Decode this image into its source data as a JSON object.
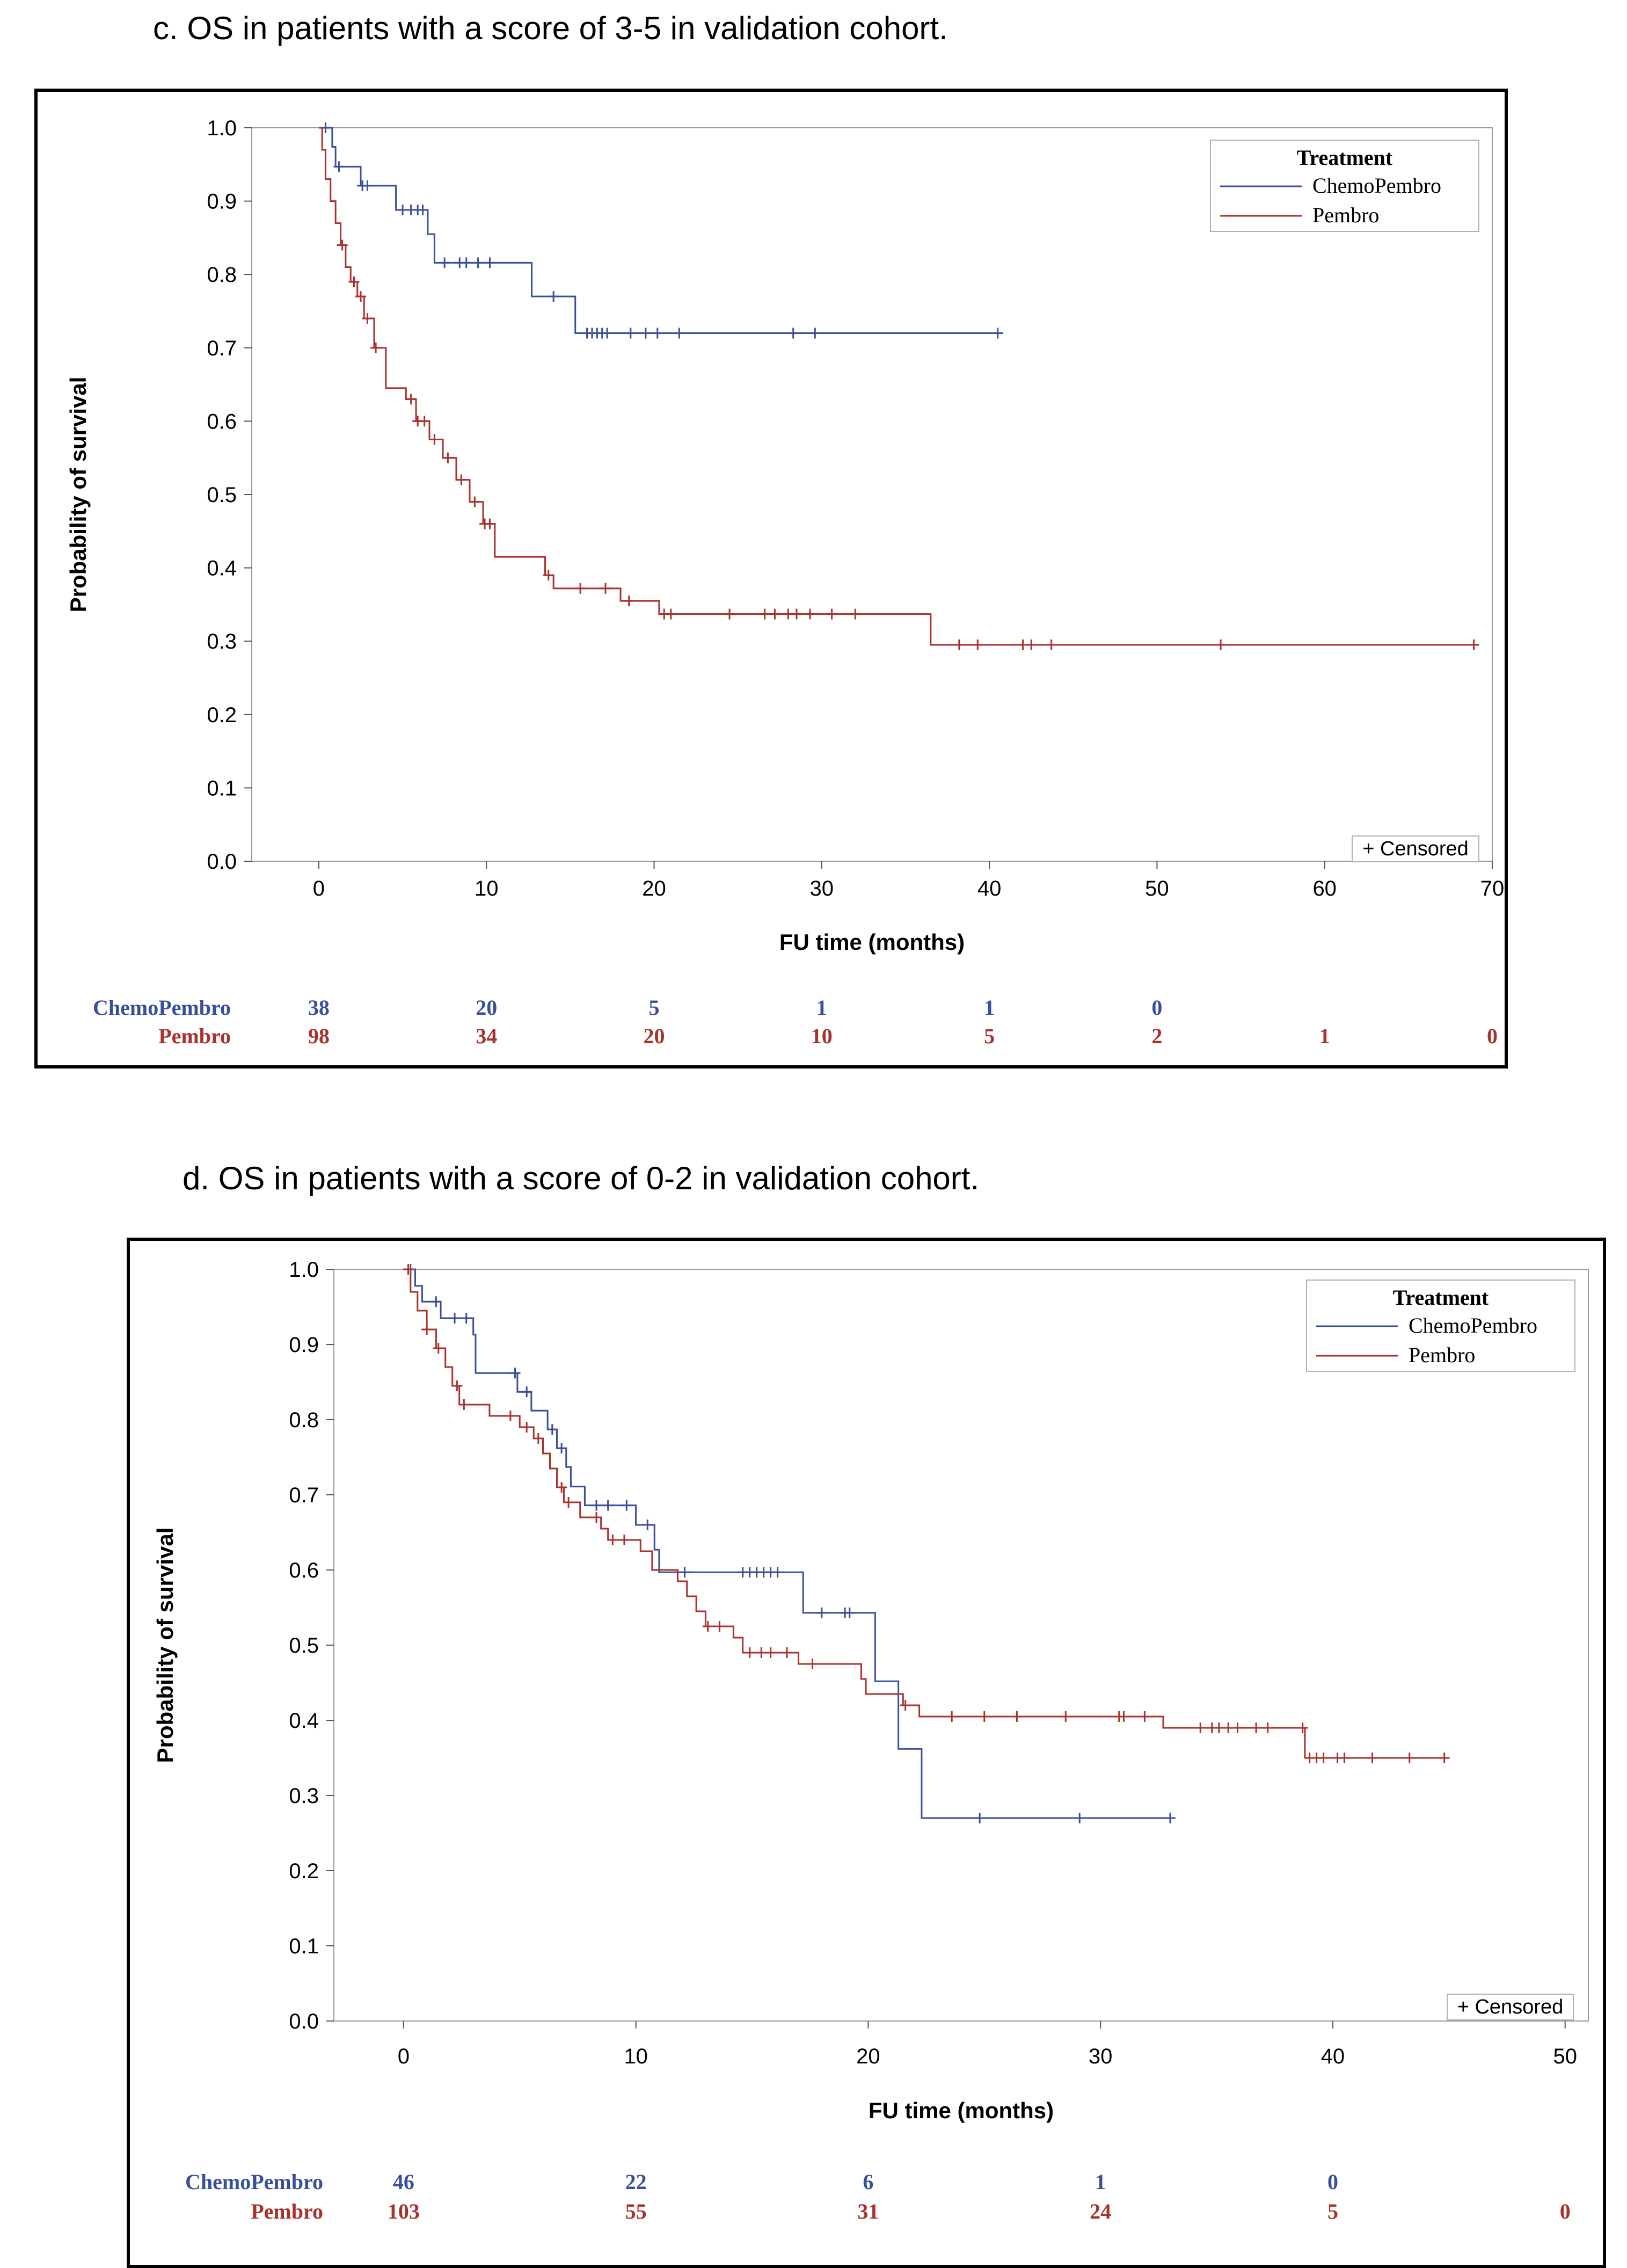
{
  "panels": {
    "c": {
      "title": "c. OS in patients with a score of 3-5 in validation cohort."
    },
    "d": {
      "title": "d. OS in patients with a score of 0-2 in validation cohort."
    }
  },
  "colors": {
    "ChemoPembro": "#3a4f9a",
    "Pembro": "#a8322c"
  },
  "chart_data": [
    {
      "type": "line",
      "subtype": "kaplan-meier",
      "id": "c",
      "title": "c. OS in patients with a score of 3-5 in validation cohort.",
      "xlabel": "FU time (months)",
      "ylabel": "Probability of survival",
      "xlim": [
        -4,
        70
      ],
      "ylim": [
        0,
        1
      ],
      "xticks": [
        0,
        10,
        20,
        30,
        40,
        50,
        60,
        70
      ],
      "yticks": [
        "0.0",
        "0.1",
        "0.2",
        "0.3",
        "0.4",
        "0.5",
        "0.6",
        "0.7",
        "0.8",
        "0.9",
        "1.0"
      ],
      "legend": {
        "title": "Treatment",
        "position": "top-right"
      },
      "censor_label": "+ Censored",
      "series": [
        {
          "name": "ChemoPembro",
          "steps": [
            [
              0,
              1.0
            ],
            [
              0.8,
              0.974
            ],
            [
              1.0,
              0.947
            ],
            [
              2.5,
              0.921
            ],
            [
              4.6,
              0.888
            ],
            [
              6.5,
              0.855
            ],
            [
              6.9,
              0.816
            ],
            [
              12.7,
              0.77
            ],
            [
              15.3,
              0.72
            ],
            [
              40.5,
              0.72
            ]
          ],
          "censored": [
            [
              0.4,
              1.0
            ],
            [
              1.2,
              0.947
            ],
            [
              2.6,
              0.921
            ],
            [
              2.9,
              0.921
            ],
            [
              5.0,
              0.888
            ],
            [
              5.5,
              0.888
            ],
            [
              5.9,
              0.888
            ],
            [
              6.2,
              0.888
            ],
            [
              7.5,
              0.816
            ],
            [
              8.4,
              0.816
            ],
            [
              8.8,
              0.816
            ],
            [
              9.5,
              0.816
            ],
            [
              10.2,
              0.816
            ],
            [
              14.0,
              0.77
            ],
            [
              16.0,
              0.72
            ],
            [
              16.3,
              0.72
            ],
            [
              16.6,
              0.72
            ],
            [
              16.9,
              0.72
            ],
            [
              17.2,
              0.72
            ],
            [
              18.6,
              0.72
            ],
            [
              19.5,
              0.72
            ],
            [
              20.2,
              0.72
            ],
            [
              21.5,
              0.72
            ],
            [
              28.3,
              0.72
            ],
            [
              29.6,
              0.72
            ],
            [
              40.5,
              0.72
            ]
          ]
        },
        {
          "name": "Pembro",
          "steps": [
            [
              0,
              1.0
            ],
            [
              0.2,
              0.97
            ],
            [
              0.4,
              0.93
            ],
            [
              0.7,
              0.9
            ],
            [
              1.0,
              0.87
            ],
            [
              1.3,
              0.84
            ],
            [
              1.6,
              0.81
            ],
            [
              1.9,
              0.79
            ],
            [
              2.3,
              0.77
            ],
            [
              2.7,
              0.74
            ],
            [
              3.3,
              0.7
            ],
            [
              4.0,
              0.645
            ],
            [
              5.2,
              0.63
            ],
            [
              5.8,
              0.6
            ],
            [
              6.6,
              0.575
            ],
            [
              7.4,
              0.55
            ],
            [
              8.2,
              0.52
            ],
            [
              9.0,
              0.49
            ],
            [
              9.8,
              0.46
            ],
            [
              10.5,
              0.415
            ],
            [
              13.5,
              0.39
            ],
            [
              14.0,
              0.372
            ],
            [
              18.0,
              0.355
            ],
            [
              20.3,
              0.337
            ],
            [
              36.5,
              0.295
            ],
            [
              68.9,
              0.295
            ]
          ],
          "censored": [
            [
              1.4,
              0.84
            ],
            [
              2.1,
              0.79
            ],
            [
              2.5,
              0.77
            ],
            [
              2.9,
              0.74
            ],
            [
              3.4,
              0.7
            ],
            [
              5.5,
              0.63
            ],
            [
              5.9,
              0.6
            ],
            [
              6.3,
              0.6
            ],
            [
              6.9,
              0.575
            ],
            [
              7.7,
              0.55
            ],
            [
              8.5,
              0.52
            ],
            [
              9.3,
              0.49
            ],
            [
              9.9,
              0.46
            ],
            [
              10.2,
              0.46
            ],
            [
              13.7,
              0.39
            ],
            [
              15.6,
              0.372
            ],
            [
              17.1,
              0.372
            ],
            [
              18.5,
              0.355
            ],
            [
              20.6,
              0.337
            ],
            [
              21.0,
              0.337
            ],
            [
              24.5,
              0.337
            ],
            [
              26.6,
              0.337
            ],
            [
              27.2,
              0.337
            ],
            [
              28.0,
              0.337
            ],
            [
              28.5,
              0.337
            ],
            [
              29.3,
              0.337
            ],
            [
              30.6,
              0.337
            ],
            [
              32.0,
              0.337
            ],
            [
              38.2,
              0.295
            ],
            [
              39.3,
              0.295
            ],
            [
              42.0,
              0.295
            ],
            [
              42.5,
              0.295
            ],
            [
              43.7,
              0.295
            ],
            [
              53.8,
              0.295
            ],
            [
              68.9,
              0.295
            ]
          ]
        }
      ],
      "risk_table": {
        "times": [
          0,
          10,
          20,
          30,
          40,
          50,
          60,
          70
        ],
        "rows": [
          {
            "name": "ChemoPembro",
            "values": [
              "38",
              "20",
              "5",
              "1",
              "1",
              "0",
              "",
              ""
            ]
          },
          {
            "name": "Pembro",
            "values": [
              "98",
              "34",
              "20",
              "10",
              "5",
              "2",
              "1",
              "0"
            ]
          }
        ]
      }
    },
    {
      "type": "line",
      "subtype": "kaplan-meier",
      "id": "d",
      "title": "d. OS in patients with a score of 0-2 in validation cohort.",
      "xlabel": "FU time (months)",
      "ylabel": "Probability of survival",
      "xlim": [
        -3,
        51
      ],
      "ylim": [
        0,
        1
      ],
      "xticks": [
        0,
        10,
        20,
        30,
        40,
        50
      ],
      "yticks": [
        "0.0",
        "0.1",
        "0.2",
        "0.3",
        "0.4",
        "0.5",
        "0.6",
        "0.7",
        "0.8",
        "0.9",
        "1.0"
      ],
      "legend": {
        "title": "Treatment",
        "position": "top-right"
      },
      "censor_label": "+ Censored",
      "series": [
        {
          "name": "ChemoPembro",
          "steps": [
            [
              0,
              1.0
            ],
            [
              0.5,
              0.978
            ],
            [
              0.8,
              0.957
            ],
            [
              1.6,
              0.935
            ],
            [
              3.0,
              0.913
            ],
            [
              3.1,
              0.862
            ],
            [
              4.9,
              0.837
            ],
            [
              5.5,
              0.812
            ],
            [
              6.2,
              0.787
            ],
            [
              6.6,
              0.762
            ],
            [
              7.0,
              0.737
            ],
            [
              7.2,
              0.711
            ],
            [
              7.8,
              0.686
            ],
            [
              10.0,
              0.66
            ],
            [
              10.8,
              0.627
            ],
            [
              11.0,
              0.597
            ],
            [
              17.2,
              0.543
            ],
            [
              20.3,
              0.452
            ],
            [
              21.3,
              0.362
            ],
            [
              22.3,
              0.27
            ],
            [
              33.0,
              0.27
            ]
          ],
          "censored": [
            [
              0.3,
              1.0
            ],
            [
              1.4,
              0.957
            ],
            [
              2.2,
              0.935
            ],
            [
              2.7,
              0.935
            ],
            [
              4.8,
              0.862
            ],
            [
              5.3,
              0.837
            ],
            [
              6.4,
              0.787
            ],
            [
              6.8,
              0.762
            ],
            [
              8.3,
              0.686
            ],
            [
              8.8,
              0.686
            ],
            [
              9.6,
              0.686
            ],
            [
              10.5,
              0.66
            ],
            [
              12.1,
              0.597
            ],
            [
              14.6,
              0.597
            ],
            [
              14.9,
              0.597
            ],
            [
              15.2,
              0.597
            ],
            [
              15.5,
              0.597
            ],
            [
              15.8,
              0.597
            ],
            [
              16.1,
              0.597
            ],
            [
              18.0,
              0.543
            ],
            [
              19.0,
              0.543
            ],
            [
              19.2,
              0.543
            ],
            [
              24.8,
              0.27
            ],
            [
              29.1,
              0.27
            ],
            [
              33.0,
              0.27
            ]
          ]
        },
        {
          "name": "Pembro",
          "steps": [
            [
              0,
              1.0
            ],
            [
              0.3,
              0.97
            ],
            [
              0.6,
              0.945
            ],
            [
              1.0,
              0.92
            ],
            [
              1.4,
              0.895
            ],
            [
              1.8,
              0.87
            ],
            [
              2.1,
              0.845
            ],
            [
              2.4,
              0.82
            ],
            [
              3.7,
              0.805
            ],
            [
              5.0,
              0.79
            ],
            [
              5.6,
              0.775
            ],
            [
              6.0,
              0.755
            ],
            [
              6.3,
              0.735
            ],
            [
              6.6,
              0.71
            ],
            [
              6.9,
              0.69
            ],
            [
              7.6,
              0.67
            ],
            [
              8.5,
              0.655
            ],
            [
              8.8,
              0.64
            ],
            [
              10.2,
              0.625
            ],
            [
              10.7,
              0.6
            ],
            [
              11.8,
              0.585
            ],
            [
              12.2,
              0.565
            ],
            [
              12.6,
              0.545
            ],
            [
              13.0,
              0.525
            ],
            [
              14.2,
              0.51
            ],
            [
              14.6,
              0.49
            ],
            [
              17.0,
              0.475
            ],
            [
              19.7,
              0.455
            ],
            [
              19.9,
              0.435
            ],
            [
              21.5,
              0.42
            ],
            [
              22.2,
              0.405
            ],
            [
              32.7,
              0.39
            ],
            [
              38.8,
              0.35
            ],
            [
              45.0,
              0.35
            ]
          ],
          "censored": [
            [
              0.2,
              1.0
            ],
            [
              1.0,
              0.92
            ],
            [
              1.5,
              0.895
            ],
            [
              2.3,
              0.845
            ],
            [
              2.6,
              0.82
            ],
            [
              4.6,
              0.805
            ],
            [
              5.3,
              0.79
            ],
            [
              5.8,
              0.775
            ],
            [
              6.8,
              0.71
            ],
            [
              7.1,
              0.69
            ],
            [
              8.3,
              0.67
            ],
            [
              9.0,
              0.64
            ],
            [
              9.5,
              0.64
            ],
            [
              13.1,
              0.525
            ],
            [
              13.6,
              0.525
            ],
            [
              14.9,
              0.49
            ],
            [
              15.4,
              0.49
            ],
            [
              15.8,
              0.49
            ],
            [
              16.5,
              0.49
            ],
            [
              17.6,
              0.475
            ],
            [
              21.6,
              0.42
            ],
            [
              23.6,
              0.405
            ],
            [
              25.0,
              0.405
            ],
            [
              26.4,
              0.405
            ],
            [
              28.5,
              0.405
            ],
            [
              30.8,
              0.405
            ],
            [
              31.0,
              0.405
            ],
            [
              31.9,
              0.405
            ],
            [
              34.3,
              0.39
            ],
            [
              34.8,
              0.39
            ],
            [
              35.1,
              0.39
            ],
            [
              35.5,
              0.39
            ],
            [
              35.9,
              0.39
            ],
            [
              36.7,
              0.39
            ],
            [
              37.2,
              0.39
            ],
            [
              38.7,
              0.39
            ],
            [
              39.0,
              0.35
            ],
            [
              39.3,
              0.35
            ],
            [
              39.6,
              0.35
            ],
            [
              40.2,
              0.35
            ],
            [
              40.5,
              0.35
            ],
            [
              41.7,
              0.35
            ],
            [
              43.3,
              0.35
            ],
            [
              44.8,
              0.35
            ]
          ]
        }
      ],
      "risk_table": {
        "times": [
          0,
          10,
          20,
          30,
          40,
          50
        ],
        "rows": [
          {
            "name": "ChemoPembro",
            "values": [
              "46",
              "22",
              "6",
              "1",
              "0",
              ""
            ]
          },
          {
            "name": "Pembro",
            "values": [
              "103",
              "55",
              "31",
              "24",
              "5",
              "0"
            ]
          }
        ]
      }
    }
  ]
}
